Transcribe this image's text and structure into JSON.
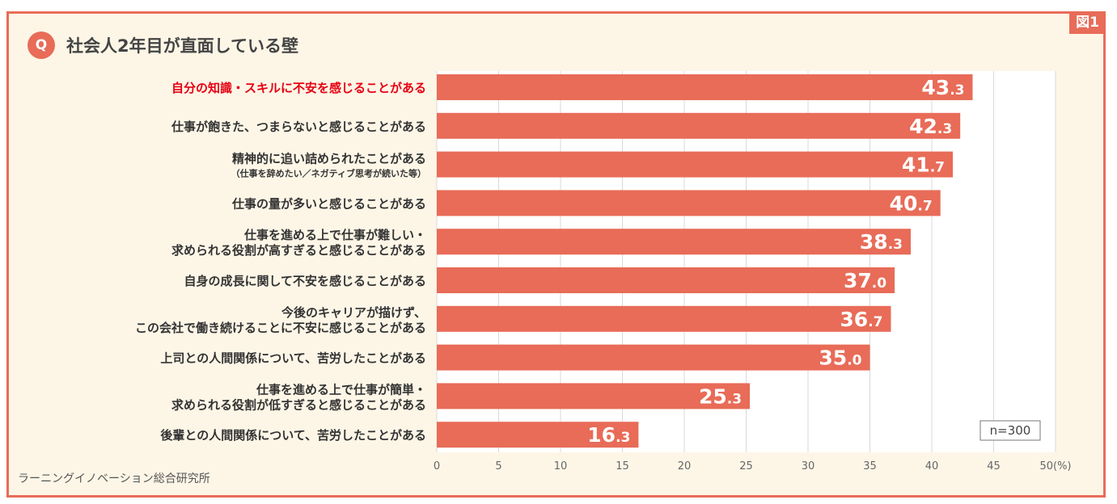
{
  "figure_tag": "図1",
  "q_badge": "Q",
  "title": "社会人2年目が直面している壁",
  "source": "ラーニングイノベーション総合研究所",
  "sample_note": "n=300",
  "colors": {
    "bar": "#e86c58",
    "frame": "#e86c58",
    "background": "#fdf6e7",
    "plot_background": "#ffffff",
    "highlight_text": "#e60012"
  },
  "chart_data": {
    "type": "bar",
    "orientation": "horizontal",
    "title": "社会人2年目が直面している壁",
    "unit": "(%)",
    "xlim": [
      0,
      50
    ],
    "ticks": [
      "0",
      "5",
      "10",
      "15",
      "20",
      "25",
      "30",
      "35",
      "40",
      "45",
      "50"
    ],
    "grid": true,
    "categories": [
      {
        "lines": [
          "自分の知識・スキルに不安を感じることがある"
        ],
        "highlight": true
      },
      {
        "lines": [
          "仕事が飽きた、つまらないと感じることがある"
        ]
      },
      {
        "lines": [
          "精神的に追い詰められたことがある"
        ],
        "sub": "（仕事を辞めたい／ネガティブ思考が続いた等）"
      },
      {
        "lines": [
          "仕事の量が多いと感じることがある"
        ]
      },
      {
        "lines": [
          "仕事を進める上で仕事が難しい・",
          "求められる役割が高すぎると感じることがある"
        ]
      },
      {
        "lines": [
          "自身の成長に関して不安を感じることがある"
        ]
      },
      {
        "lines": [
          "今後のキャリアが描けず、",
          "この会社で働き続けることに不安に感じることがある"
        ]
      },
      {
        "lines": [
          "上司との人間関係について、苦労したことがある"
        ]
      },
      {
        "lines": [
          "仕事を進める上で仕事が簡単・",
          "求められる役割が低すぎると感じることがある"
        ]
      },
      {
        "lines": [
          "後輩との人間関係について、苦労したことがある"
        ]
      }
    ],
    "values": [
      43.3,
      42.3,
      41.7,
      40.7,
      38.3,
      37.0,
      36.7,
      35.0,
      25.3,
      16.3
    ]
  }
}
